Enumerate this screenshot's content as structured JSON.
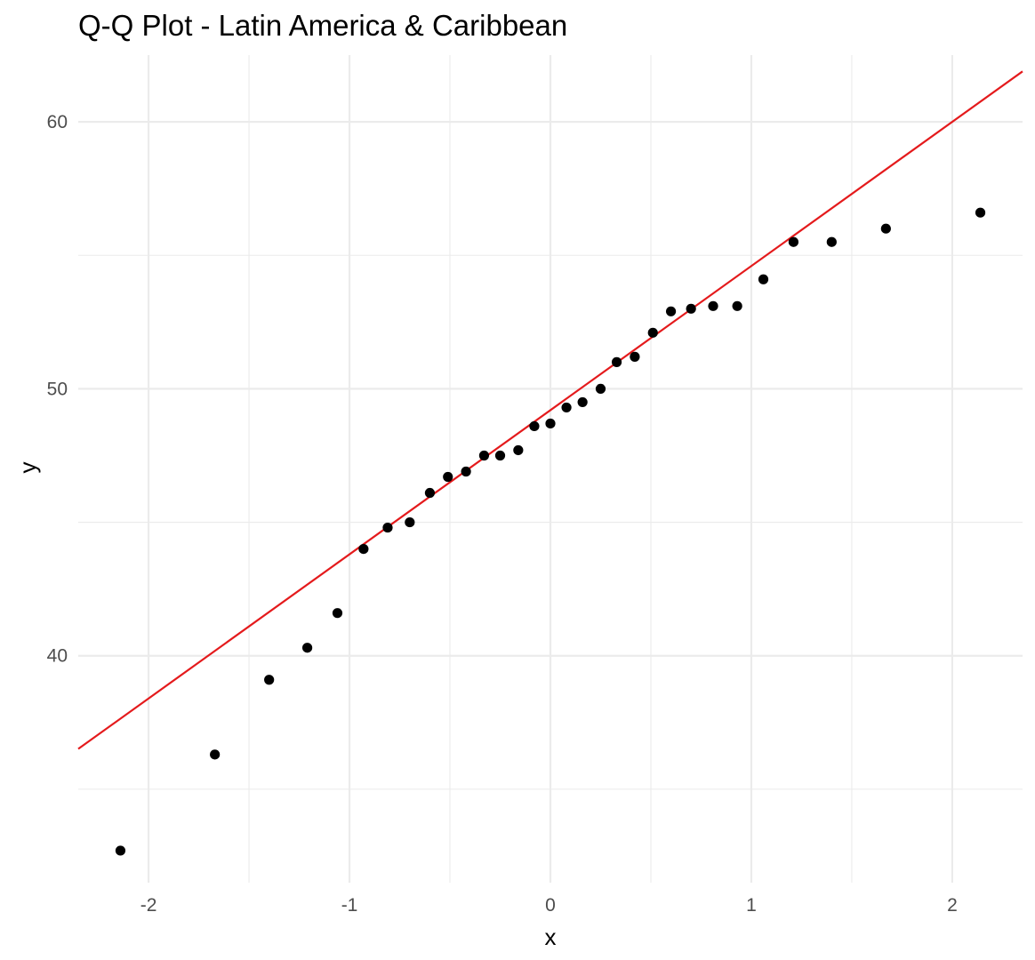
{
  "chart_data": {
    "type": "scatter",
    "title": "Q-Q Plot - Latin America & Caribbean",
    "xlabel": "x",
    "ylabel": "y",
    "xlim": [
      -2.35,
      2.35
    ],
    "ylim": [
      31.5,
      62.5
    ],
    "x_ticks": [
      -2,
      -1,
      0,
      1,
      2
    ],
    "x_tick_labels": [
      "-2",
      "-1",
      "0",
      "1",
      "2"
    ],
    "y_ticks": [
      40,
      50,
      60
    ],
    "y_tick_labels": [
      "40",
      "50",
      "60"
    ],
    "grid": true,
    "legend": "none",
    "points": {
      "color": "#000000",
      "x": [
        -2.14,
        -1.67,
        -1.4,
        -1.21,
        -1.06,
        -0.93,
        -0.81,
        -0.7,
        -0.6,
        -0.51,
        -0.42,
        -0.33,
        -0.25,
        -0.16,
        -0.08,
        0.0,
        0.08,
        0.16,
        0.25,
        0.33,
        0.42,
        0.51,
        0.6,
        0.7,
        0.81,
        0.93,
        1.06,
        1.21,
        1.4,
        1.67,
        2.14
      ],
      "y": [
        32.7,
        36.3,
        39.1,
        40.3,
        41.6,
        44.0,
        44.8,
        45.0,
        46.1,
        46.7,
        46.9,
        47.5,
        47.5,
        47.7,
        48.6,
        48.7,
        49.3,
        49.5,
        50.0,
        51.0,
        51.2,
        52.1,
        52.9,
        53.0,
        53.1,
        53.1,
        54.1,
        55.5,
        55.5,
        56.0,
        56.6
      ]
    },
    "reference_line": {
      "color": "#e41a1c",
      "intercept": 49.2,
      "slope": 5.4
    }
  }
}
